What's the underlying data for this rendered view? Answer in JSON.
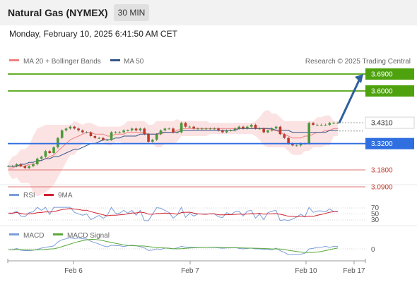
{
  "header": {
    "title": "Natural Gas (NYMEX)",
    "timeframe": "30 MIN",
    "timestamp": "Monday, February 10, 2025 6:41:50 AM CET"
  },
  "legend": {
    "ma20_label": "MA 20 + Bollinger Bands",
    "ma50_label": "MA 50",
    "credit": "Research © 2025 Trading Central",
    "rsi_label": "RSI",
    "rsi_ma_label": "9MA",
    "macd_label": "MACD",
    "macd_signal_label": "MACD Signal"
  },
  "colors": {
    "resistance": "#4ea20e",
    "pivot": "#2f6fe0",
    "support": "#e07070",
    "ma20": "#f08080",
    "ma50": "#34558b",
    "bollinger_fill": "#fbdede",
    "arrow": "#2e5f9e",
    "candle_up": "#4a9a3a",
    "candle_down": "#c0392b",
    "rsi": "#7b9ed9",
    "rsi_ma": "#d02030",
    "macd": "#7b9ed9",
    "macd_signal": "#5aa838"
  },
  "chart_data": {
    "type": "candlestick",
    "instrument": "Natural Gas (NYMEX)",
    "timeframe": "30 MIN",
    "price_range": [
      3.05,
      3.72
    ],
    "x_tick_labels": [
      "Feb 6",
      "Feb 7",
      "Feb 10",
      "Feb 17"
    ],
    "levels": [
      {
        "value": 3.69,
        "label": "3.6900",
        "kind": "resistance"
      },
      {
        "value": 3.6,
        "label": "3.6000",
        "kind": "resistance"
      },
      {
        "value": 3.431,
        "label": "3.4310",
        "kind": "last"
      },
      {
        "value": 3.32,
        "label": "3.3200",
        "kind": "pivot"
      },
      {
        "value": 3.18,
        "label": "3.1800",
        "kind": "support"
      },
      {
        "value": 3.09,
        "label": "3.0900",
        "kind": "support"
      }
    ],
    "close_series": [
      3.2,
      3.2,
      3.21,
      3.2,
      3.19,
      3.2,
      3.21,
      3.24,
      3.25,
      3.28,
      3.27,
      3.3,
      3.35,
      3.39,
      3.4,
      3.41,
      3.4,
      3.39,
      3.38,
      3.38,
      3.36,
      3.35,
      3.35,
      3.34,
      3.34,
      3.38,
      3.38,
      3.38,
      3.39,
      3.39,
      3.4,
      3.39,
      3.4,
      3.37,
      3.33,
      3.34,
      3.37,
      3.39,
      3.4,
      3.4,
      3.38,
      3.38,
      3.43,
      3.41,
      3.41,
      3.4,
      3.4,
      3.4,
      3.4,
      3.4,
      3.4,
      3.39,
      3.38,
      3.39,
      3.39,
      3.4,
      3.41,
      3.4,
      3.41,
      3.42,
      3.4,
      3.4,
      3.38,
      3.39,
      3.4,
      3.41,
      3.37,
      3.35,
      3.32,
      3.31,
      3.31,
      3.32,
      3.32,
      3.43,
      3.42,
      3.42,
      3.42,
      3.42,
      3.43,
      3.43,
      3.43
    ],
    "ma20_series": [
      3.19,
      3.19,
      3.2,
      3.2,
      3.2,
      3.21,
      3.21,
      3.22,
      3.23,
      3.24,
      3.25,
      3.26,
      3.28,
      3.3,
      3.32,
      3.34,
      3.35,
      3.36,
      3.37,
      3.38,
      3.38,
      3.37,
      3.37,
      3.37,
      3.36,
      3.36,
      3.37,
      3.37,
      3.37,
      3.38,
      3.38,
      3.38,
      3.38,
      3.38,
      3.37,
      3.37,
      3.37,
      3.37,
      3.38,
      3.38,
      3.38,
      3.39,
      3.4,
      3.4,
      3.4,
      3.4,
      3.4,
      3.4,
      3.4,
      3.4,
      3.4,
      3.4,
      3.4,
      3.4,
      3.4,
      3.4,
      3.4,
      3.4,
      3.4,
      3.4,
      3.4,
      3.4,
      3.4,
      3.4,
      3.39,
      3.39,
      3.38,
      3.37,
      3.36,
      3.35,
      3.35,
      3.35,
      3.36,
      3.36,
      3.37,
      3.38,
      3.38,
      3.39,
      3.39,
      3.4,
      3.4
    ],
    "ma50_series": [
      3.2,
      3.2,
      3.2,
      3.21,
      3.21,
      3.22,
      3.22,
      3.23,
      3.23,
      3.24,
      3.24,
      3.25,
      3.25,
      3.26,
      3.27,
      3.28,
      3.29,
      3.29,
      3.3,
      3.31,
      3.32,
      3.32,
      3.33,
      3.34,
      3.34,
      3.34,
      3.35,
      3.35,
      3.36,
      3.36,
      3.36,
      3.36,
      3.37,
      3.37,
      3.37,
      3.37,
      3.37,
      3.38,
      3.38,
      3.38,
      3.38,
      3.38,
      3.39,
      3.39,
      3.39,
      3.39,
      3.39,
      3.39,
      3.39,
      3.39,
      3.39,
      3.39,
      3.39,
      3.39,
      3.39,
      3.39,
      3.4,
      3.4,
      3.4,
      3.4,
      3.4,
      3.4,
      3.4,
      3.4,
      3.4,
      3.39,
      3.39,
      3.39,
      3.39,
      3.38,
      3.38,
      3.38,
      3.38,
      3.38,
      3.38,
      3.38,
      3.38,
      3.38,
      3.39,
      3.39,
      3.39
    ],
    "projection": {
      "from": 3.43,
      "to": 3.69
    },
    "rsi": {
      "levels": [
        70,
        50,
        30
      ],
      "range": [
        20,
        80
      ]
    },
    "macd": {
      "zero_label": "0"
    }
  }
}
